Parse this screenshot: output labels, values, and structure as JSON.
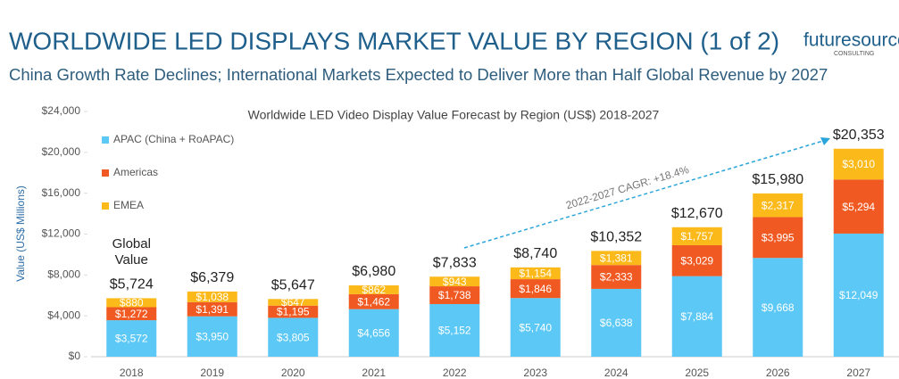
{
  "header": {
    "title": "WORLDWIDE LED DISPLAYS MARKET VALUE BY REGION (1 of 2)",
    "subtitle": "China Growth Rate Declines; International Markets Expected to Deliver More than Half Global Revenue by 2027",
    "logo": {
      "name": "futuresource",
      "tagline": "CONSULTING"
    }
  },
  "chart_data": {
    "type": "stacked_bar",
    "title": "Worldwide LED Video Display Value Forecast by Region (US$) 2018-2027",
    "y_label": "Value (US$ Millions)",
    "categories": [
      "2018",
      "2019",
      "2020",
      "2021",
      "2022",
      "2023",
      "2024",
      "2025",
      "2026",
      "2027"
    ],
    "series": [
      {
        "name": "APAC (China + RoAPAC)",
        "color": "#5bc8f5",
        "values": [
          3572,
          3950,
          3805,
          4656,
          5152,
          5740,
          6638,
          7884,
          9668,
          12049
        ],
        "value_labels": [
          "$3,572",
          "$3,950",
          "$3,805",
          "$4,656",
          "$5,152",
          "$5,740",
          "$6,638",
          "$7,884",
          "$9,668",
          "$12,049"
        ]
      },
      {
        "name": "Americas",
        "color": "#f05a22",
        "values": [
          1272,
          1391,
          1195,
          1462,
          1738,
          1846,
          2333,
          3029,
          3995,
          5294
        ],
        "value_labels": [
          "$1,272",
          "$1,391",
          "$1,195",
          "$1,462",
          "$1,738",
          "$1,846",
          "$2,333",
          "$3,029",
          "$3,995",
          "$5,294"
        ]
      },
      {
        "name": "EMEA",
        "color": "#fbb91a",
        "values": [
          880,
          1038,
          647,
          862,
          943,
          1154,
          1381,
          1757,
          2317,
          3010
        ],
        "value_labels": [
          "$880",
          "$1,038",
          "$647",
          "$862",
          "$943",
          "$1,154",
          "$1,381",
          "$1,757",
          "$2,317",
          "$3,010"
        ]
      }
    ],
    "totals": [
      5724,
      6379,
      5647,
      6980,
      7833,
      8740,
      10352,
      12670,
      15980,
      20353
    ],
    "total_labels": [
      "$5,724",
      "$6,379",
      "$5,647",
      "$6,980",
      "$7,833",
      "$8,740",
      "$10,352",
      "$12,670",
      "$15,980",
      "$20,353"
    ],
    "total_caption": "Global Value",
    "annotation": "2022-2027 CAGR: +18.4%",
    "ylim": [
      0,
      24000
    ],
    "yticks": [
      {
        "value": 0,
        "label": "$0"
      },
      {
        "value": 4000,
        "label": "$4,000"
      },
      {
        "value": 8000,
        "label": "$8,000"
      },
      {
        "value": 12000,
        "label": "$12,000"
      },
      {
        "value": 16000,
        "label": "$16,000"
      },
      {
        "value": 20000,
        "label": "$20,000"
      },
      {
        "value": 24000,
        "label": "$24,000"
      }
    ],
    "legend": "top-left",
    "grid": false
  }
}
